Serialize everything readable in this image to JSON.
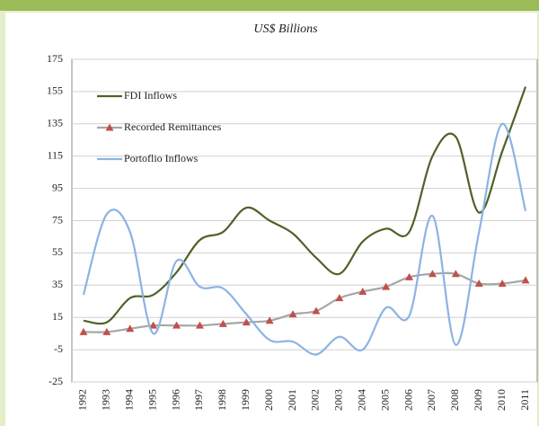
{
  "chart_data": {
    "type": "line",
    "subtitle": "US$ Billions",
    "categories": [
      "1992",
      "1993",
      "1994",
      "1995",
      "1996",
      "1997",
      "1998",
      "1999",
      "2000",
      "2001",
      "2002",
      "2003",
      "2004",
      "2005",
      "2006",
      "2007",
      "2008",
      "2009",
      "2010",
      "2011"
    ],
    "series": [
      {
        "name": "FDI Inflows",
        "color": "#4f6228",
        "values": [
          13,
          12,
          27,
          29,
          43,
          63,
          68,
          83,
          75,
          67,
          52,
          42,
          62,
          70,
          68,
          115,
          127,
          80,
          118,
          158
        ]
      },
      {
        "name": "Recorded Remittances",
        "color": "#a6a6a6",
        "marker_color": "#c0504d",
        "values": [
          6,
          6,
          8,
          10,
          10,
          10,
          11,
          12,
          13,
          17,
          19,
          27,
          31,
          34,
          40,
          42,
          42,
          36,
          36,
          38
        ]
      },
      {
        "name": "Portoflio Inflows",
        "color": "#8db3e2",
        "values": [
          29,
          79,
          68,
          5,
          50,
          34,
          33,
          17,
          1,
          0,
          -8,
          3,
          -5,
          21,
          16,
          78,
          -2,
          68,
          135,
          81
        ]
      }
    ],
    "ylim": [
      -25,
      175
    ],
    "yticks": [
      -25,
      -5,
      15,
      35,
      55,
      75,
      95,
      115,
      135,
      155,
      175
    ],
    "grid": true,
    "legend": "upper left"
  }
}
